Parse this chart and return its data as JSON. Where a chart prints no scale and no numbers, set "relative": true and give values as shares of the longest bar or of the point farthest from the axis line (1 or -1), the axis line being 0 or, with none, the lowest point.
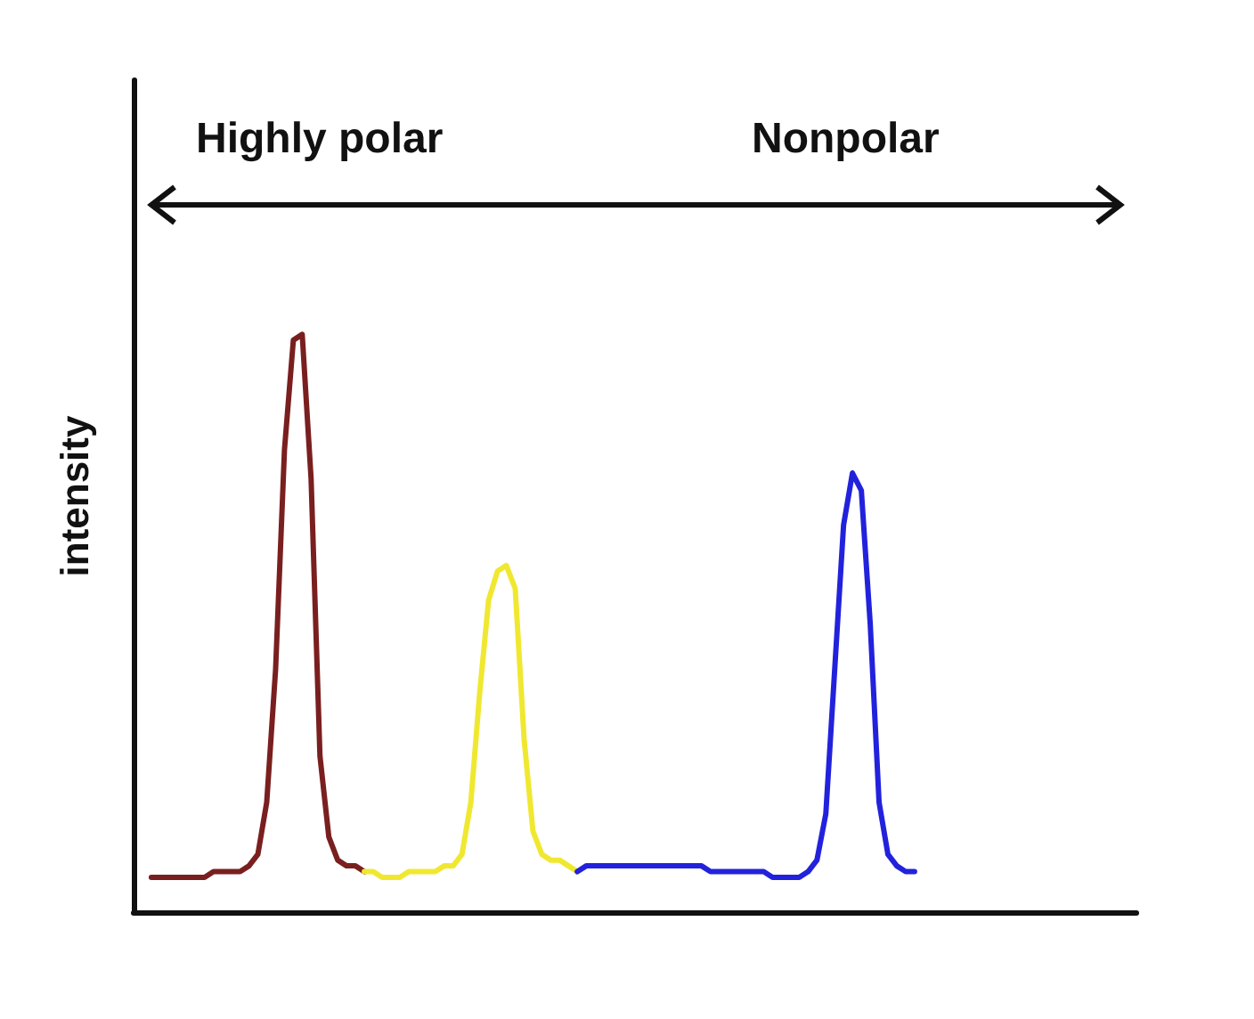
{
  "chart_data": {
    "type": "line",
    "relative": true,
    "ylabel": "intensity",
    "annotations": [
      "Highly polar",
      "Nonpolar"
    ],
    "grid": false,
    "line_style": "solid",
    "categories": [
      null,
      null,
      null,
      null,
      null,
      null,
      null,
      null,
      null,
      null,
      null,
      null,
      null,
      null,
      null,
      null,
      null,
      null,
      null,
      null,
      null,
      null,
      null,
      null,
      null,
      null,
      null,
      null,
      null,
      null,
      null,
      null,
      null,
      null,
      null,
      null,
      null,
      null,
      null,
      null,
      null,
      null,
      null,
      null,
      null,
      null,
      null,
      null,
      null,
      null,
      null,
      null,
      null,
      null,
      null,
      null,
      null,
      null,
      null,
      null,
      null,
      null,
      null,
      null,
      null,
      null,
      null,
      null,
      null,
      null,
      null,
      null,
      null,
      null,
      null,
      null,
      null,
      null,
      null,
      null,
      null,
      null,
      null,
      null,
      null,
      null,
      null,
      null,
      null,
      null,
      null,
      null,
      null,
      null,
      null,
      null,
      null,
      null,
      null,
      null,
      null,
      null,
      null,
      null,
      null,
      null,
      null,
      null,
      null,
      null,
      null,
      null,
      null,
      null
    ],
    "series": [
      {
        "color": "#7a1f1f",
        "values": [
          null,
          null,
          0.06,
          0.06,
          0.06,
          0.06,
          0.06,
          0.06,
          0.06,
          0.07,
          0.07,
          0.07,
          0.07,
          0.08,
          0.1,
          0.19,
          0.42,
          0.8,
          0.99,
          1.0,
          0.75,
          0.27,
          0.13,
          0.09,
          0.08,
          0.08,
          0.07,
          null,
          null,
          null,
          null,
          null,
          null,
          null,
          null,
          null,
          null,
          null,
          null,
          null,
          null,
          null,
          null,
          null,
          null,
          null,
          null,
          null,
          null,
          null,
          null,
          null,
          null,
          null,
          null,
          null,
          null,
          null,
          null,
          null,
          null,
          null,
          null,
          null,
          null,
          null,
          null,
          null,
          null,
          null,
          null,
          null,
          null,
          null,
          null,
          null,
          null,
          null,
          null,
          null,
          null,
          null,
          null,
          null,
          null,
          null,
          null,
          null,
          null,
          null,
          null,
          null,
          null,
          null,
          null,
          null,
          null,
          null,
          null,
          null,
          null,
          null,
          null,
          null,
          null,
          null,
          null,
          null,
          null,
          null,
          null,
          null,
          null,
          null
        ]
      },
      {
        "color": "#f0e830",
        "values": [
          null,
          null,
          null,
          null,
          null,
          null,
          null,
          null,
          null,
          null,
          null,
          null,
          null,
          null,
          null,
          null,
          null,
          null,
          null,
          null,
          null,
          null,
          null,
          null,
          null,
          null,
          0.07,
          0.07,
          0.06,
          0.06,
          0.06,
          0.07,
          0.07,
          0.07,
          0.07,
          0.08,
          0.08,
          0.1,
          0.19,
          0.38,
          0.54,
          0.59,
          0.6,
          0.56,
          0.3,
          0.14,
          0.1,
          0.09,
          0.09,
          0.08,
          0.07,
          null,
          null,
          null,
          null,
          null,
          null,
          null,
          null,
          null,
          null,
          null,
          null,
          null,
          null,
          null,
          null,
          null,
          null,
          null,
          null,
          null,
          null,
          null,
          null,
          null,
          null,
          null,
          null,
          null,
          null,
          null,
          null,
          null,
          null,
          null,
          null,
          null,
          null,
          null,
          null,
          null,
          null,
          null,
          null,
          null,
          null,
          null,
          null,
          null,
          null,
          null,
          null,
          null,
          null,
          null,
          null,
          null,
          null,
          null,
          null,
          null,
          null,
          null
        ]
      },
      {
        "color": "#2222dd",
        "values": [
          null,
          null,
          null,
          null,
          null,
          null,
          null,
          null,
          null,
          null,
          null,
          null,
          null,
          null,
          null,
          null,
          null,
          null,
          null,
          null,
          null,
          null,
          null,
          null,
          null,
          null,
          null,
          null,
          null,
          null,
          null,
          null,
          null,
          null,
          null,
          null,
          null,
          null,
          null,
          null,
          null,
          null,
          null,
          null,
          null,
          null,
          null,
          null,
          null,
          null,
          0.07,
          0.08,
          0.08,
          0.08,
          0.08,
          0.08,
          0.08,
          0.08,
          0.08,
          0.08,
          0.08,
          0.08,
          0.08,
          0.08,
          0.08,
          0.07,
          0.07,
          0.07,
          0.07,
          0.07,
          0.07,
          0.07,
          0.06,
          0.06,
          0.06,
          0.06,
          0.07,
          0.09,
          0.17,
          0.42,
          0.67,
          0.76,
          0.73,
          0.5,
          0.19,
          0.1,
          0.08,
          0.07,
          0.07,
          null,
          null,
          null,
          null,
          null,
          null,
          null,
          null,
          null,
          null,
          null,
          null,
          null,
          null,
          null,
          null,
          null,
          null,
          null,
          null,
          null,
          null,
          null,
          null,
          null
        ]
      }
    ]
  }
}
